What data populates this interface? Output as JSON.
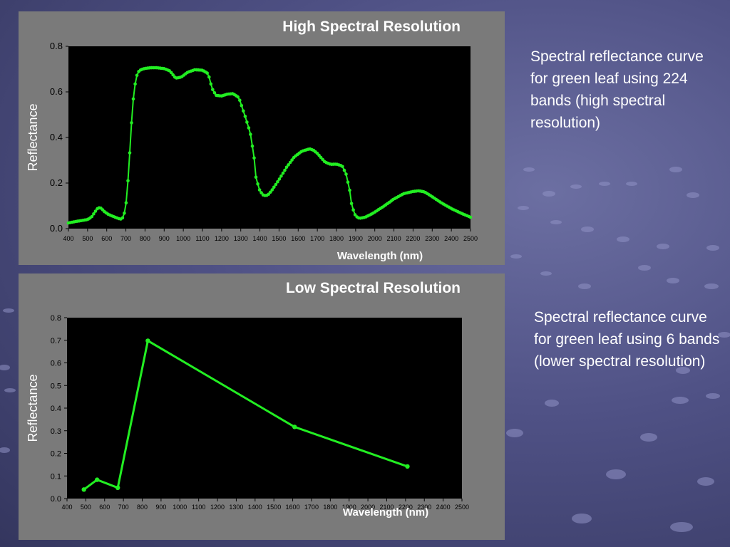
{
  "colors": {
    "line": "#22ee22",
    "plot_bg": "#000000",
    "panel_bg": "#7a7a7a",
    "text": "#ffffff"
  },
  "panels": {
    "high": {
      "title": "High Spectral Resolution",
      "caption": "Spectral reflectance curve for green leaf using 224 bands (high spectral resolution)"
    },
    "low": {
      "title": "Low Spectral Resolution",
      "caption": "Spectral reflectance curve for green leaf using 6 bands (lower spectral resolution)"
    }
  },
  "chart_data": [
    {
      "type": "scatter",
      "title": "High Spectral Resolution",
      "xlabel": "Wavelength (nm)",
      "ylabel": "Reflectance",
      "xlim": [
        400,
        2500
      ],
      "ylim": [
        0,
        0.8
      ],
      "xticks": [
        "400",
        "500",
        "600",
        "700",
        "800",
        "900",
        "1000",
        "1100",
        "1200",
        "1300",
        "1400",
        "1500",
        "1600",
        "1700",
        "1800",
        "1900",
        "2000",
        "2100",
        "2200",
        "2300",
        "2400",
        "2500"
      ],
      "yticks": [
        "0.0",
        "0.2",
        "0.4",
        "0.6",
        "0.8"
      ],
      "grid": false,
      "marker_count": 224,
      "curve_keypoints": {
        "x": [
          400,
          430,
          450,
          480,
          500,
          520,
          540,
          555,
          570,
          590,
          610,
          630,
          650,
          670,
          680,
          690,
          700,
          710,
          720,
          730,
          740,
          750,
          760,
          770,
          780,
          800,
          830,
          860,
          900,
          930,
          960,
          990,
          1020,
          1060,
          1100,
          1130,
          1150,
          1170,
          1200,
          1230,
          1260,
          1290,
          1320,
          1350,
          1370,
          1380,
          1400,
          1420,
          1440,
          1460,
          1480,
          1500,
          1540,
          1580,
          1620,
          1660,
          1680,
          1700,
          1740,
          1770,
          1800,
          1830,
          1850,
          1870,
          1880,
          1900,
          1920,
          1950,
          1990,
          2050,
          2100,
          2150,
          2200,
          2230,
          2260,
          2300,
          2350,
          2400,
          2450,
          2500
        ],
        "y": [
          0.025,
          0.03,
          0.033,
          0.037,
          0.04,
          0.05,
          0.075,
          0.092,
          0.09,
          0.073,
          0.062,
          0.055,
          0.048,
          0.042,
          0.043,
          0.06,
          0.1,
          0.2,
          0.33,
          0.47,
          0.58,
          0.645,
          0.68,
          0.693,
          0.698,
          0.703,
          0.706,
          0.706,
          0.702,
          0.692,
          0.66,
          0.665,
          0.685,
          0.697,
          0.695,
          0.68,
          0.615,
          0.585,
          0.582,
          0.59,
          0.592,
          0.575,
          0.5,
          0.42,
          0.31,
          0.22,
          0.165,
          0.145,
          0.146,
          0.165,
          0.19,
          0.215,
          0.27,
          0.315,
          0.34,
          0.35,
          0.344,
          0.33,
          0.292,
          0.282,
          0.283,
          0.275,
          0.24,
          0.165,
          0.1,
          0.055,
          0.045,
          0.05,
          0.067,
          0.1,
          0.13,
          0.153,
          0.163,
          0.166,
          0.161,
          0.14,
          0.112,
          0.088,
          0.068,
          0.05
        ]
      }
    },
    {
      "type": "line",
      "title": "Low Spectral Resolution",
      "xlabel": "Wavelength (nm)",
      "ylabel": "Reflectance",
      "xlim": [
        400,
        2500
      ],
      "ylim": [
        0,
        0.8
      ],
      "xticks": [
        "400",
        "500",
        "600",
        "700",
        "800",
        "900",
        "1000",
        "1100",
        "1200",
        "1300",
        "1400",
        "1500",
        "1600",
        "1700",
        "1800",
        "1900",
        "2000",
        "2100",
        "2200",
        "2300",
        "2400",
        "2500"
      ],
      "yticks": [
        "0.0",
        "0.1",
        "0.2",
        "0.3",
        "0.4",
        "0.5",
        "0.6",
        "0.7",
        "0.8"
      ],
      "grid": false,
      "x": [
        490,
        560,
        670,
        830,
        1610,
        2210
      ],
      "y": [
        0.04,
        0.083,
        0.048,
        0.698,
        0.317,
        0.142
      ]
    }
  ]
}
